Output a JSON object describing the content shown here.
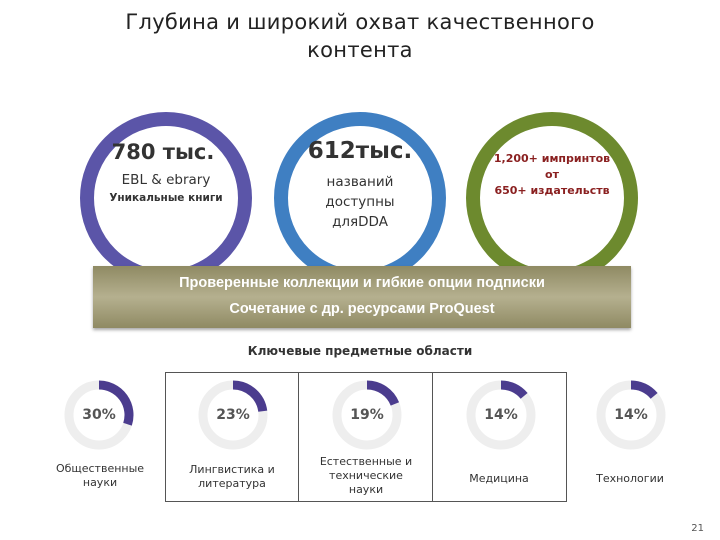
{
  "slide": {
    "title_line1": "Глубина и широкий охват качественного",
    "title_line2": "контента",
    "page_number": "21"
  },
  "circles": [
    {
      "headline": "780 тыс.",
      "line2": "EBL & ebrary",
      "line3": "Уникальные книги",
      "color": "#5b55a8"
    },
    {
      "headline": "612тыс.",
      "line2": "названий",
      "line3": "доступны",
      "line4": "дляDDA",
      "color": "#3f7fc2"
    },
    {
      "line1": "1,200+  импринтов",
      "line2": "от",
      "line3": "650+ издательств",
      "color": "#6d8a2e"
    }
  ],
  "banner": {
    "line1": "Проверенные коллекции и гибкие опции подписки",
    "line2": "Сочетание с др. ресурсами ProQuest"
  },
  "subjects_heading": "Ключевые предметные области",
  "subjects": [
    {
      "percent_label": "30%",
      "fraction": 0.3,
      "label_line1": "Общественные",
      "label_line2": "науки"
    },
    {
      "percent_label": "23%",
      "fraction": 0.23,
      "label_line1": "Лингвистика и",
      "label_line2": "литература"
    },
    {
      "percent_label": "19%",
      "fraction": 0.19,
      "label_line1": "Естественные и",
      "label_line2": "технические",
      "label_line3": "науки"
    },
    {
      "percent_label": "14%",
      "fraction": 0.14,
      "label_line1": "Медицина"
    },
    {
      "percent_label": "14%",
      "fraction": 0.14,
      "label_line1": "Технологии"
    }
  ],
  "colors": {
    "donut_track": "#eeeeee",
    "donut_fill": "#4b3c8e",
    "text_dark": "#222222",
    "headline_text": "#333333",
    "circle3_text": "#8a2020"
  }
}
